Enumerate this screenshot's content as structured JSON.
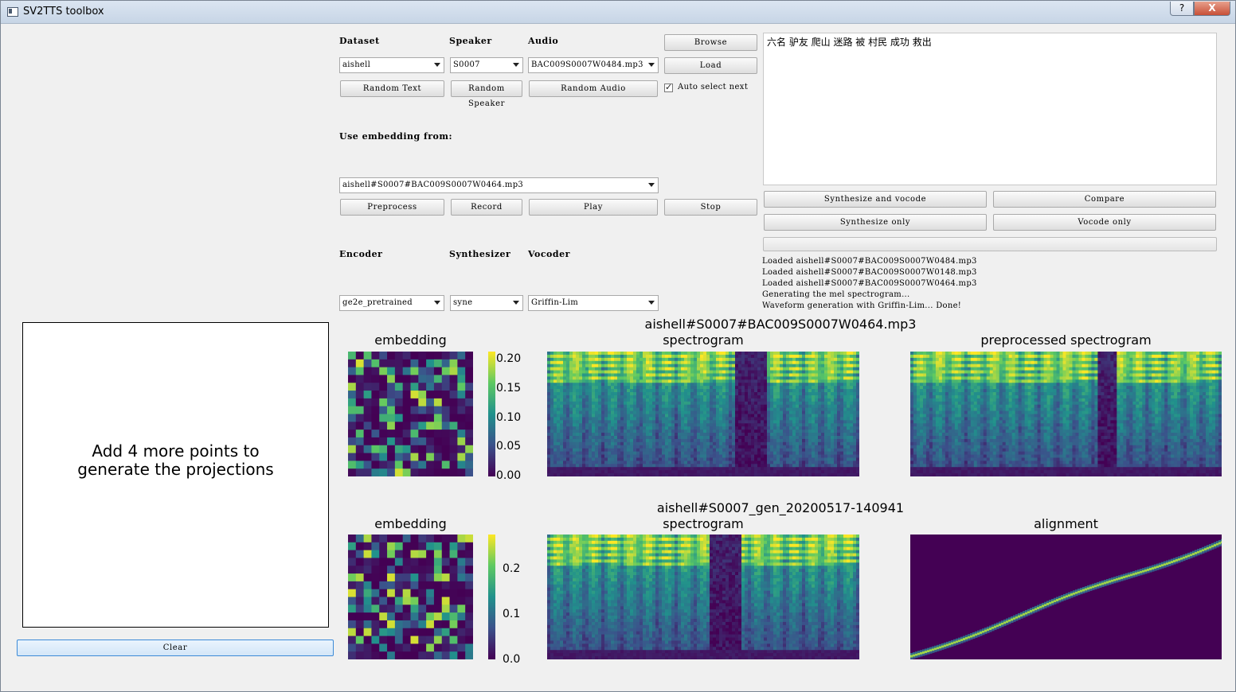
{
  "window": {
    "title": "SV2TTS toolbox",
    "help_label": "?",
    "close_label": "X"
  },
  "controls": {
    "dataset_label": "Dataset",
    "speaker_label": "Speaker",
    "audio_label": "Audio",
    "dataset_value": "aishell",
    "speaker_value": "S0007",
    "audio_value": "BAC009S0007W0484.mp3",
    "browse_label": "Browse",
    "load_label": "Load",
    "random_text_label": "Random Text",
    "random_speaker_label": "Random Speaker",
    "random_audio_label": "Random Audio",
    "auto_select_label": "Auto select next",
    "auto_select_checked": true,
    "use_embedding_label": "Use embedding from:",
    "embedding_value": "aishell#S0007#BAC009S0007W0464.mp3",
    "preprocess_label": "Preprocess",
    "record_label": "Record",
    "play_label": "Play",
    "stop_label": "Stop",
    "encoder_label": "Encoder",
    "synthesizer_label": "Synthesizer",
    "vocoder_label": "Vocoder",
    "encoder_value": "ge2e_pretrained",
    "synthesizer_value": "syne",
    "vocoder_value": "Griffin-Lim"
  },
  "text_input": {
    "value": "六名 驴友 爬山 迷路 被 村民 成功 救出"
  },
  "actions": {
    "synth_vocode_label": "Synthesize and vocode",
    "compare_label": "Compare",
    "synth_only_label": "Synthesize only",
    "vocode_only_label": "Vocode only"
  },
  "progress": {
    "value": 0
  },
  "log": [
    "Loaded aishell#S0007#BAC009S0007W0484.mp3",
    "Loaded aishell#S0007#BAC009S0007W0148.mp3",
    "Loaded aishell#S0007#BAC009S0007W0464.mp3",
    "Generating the mel spectrogram...",
    "Waveform generation with Griffin-Lim...  Done!"
  ],
  "projections": {
    "message_line1": "Add 4 more points to",
    "message_line2": "generate the projections",
    "clear_label": "Clear"
  },
  "plots": {
    "top": {
      "suptitle": "aishell#S0007#BAC009S0007W0464.mp3",
      "embedding_title": "embedding",
      "spectrogram_title": "spectrogram",
      "third_title": "preprocessed spectrogram",
      "colorbar_ticks": [
        "0.20",
        "0.15",
        "0.10",
        "0.05",
        "0.00"
      ],
      "colorbar_range": [
        0,
        0.22
      ]
    },
    "bottom": {
      "suptitle": "aishell#S0007_gen_20200517-140941",
      "embedding_title": "embedding",
      "spectrogram_title": "spectrogram",
      "third_title": "alignment",
      "colorbar_ticks": [
        "0.2",
        "0.1",
        "0.0"
      ],
      "colorbar_range": [
        0,
        0.27
      ]
    }
  }
}
